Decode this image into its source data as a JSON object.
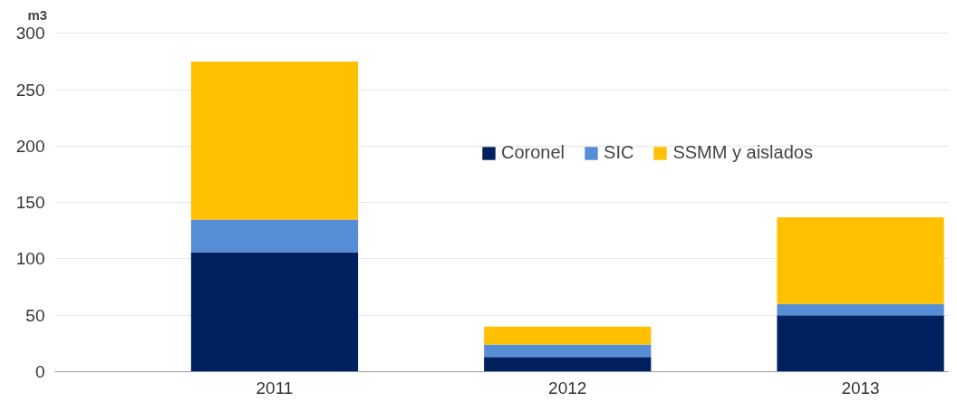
{
  "chart_data": {
    "type": "bar",
    "stacked": true,
    "ylabel": "m3",
    "categories": [
      "2011",
      "2012",
      "2013"
    ],
    "series": [
      {
        "name": "Coronel",
        "color": "#002060",
        "values": [
          106,
          13,
          50
        ]
      },
      {
        "name": "SIC",
        "color": "#558ed5",
        "values": [
          29,
          11,
          10
        ]
      },
      {
        "name": "SSMM y aislados",
        "color": "#ffc000",
        "values": [
          140,
          16,
          77
        ]
      }
    ],
    "ylim": [
      0,
      300
    ],
    "yticks": [
      0,
      50,
      100,
      150,
      200,
      250,
      300
    ],
    "grid": "y",
    "legend": "top right"
  }
}
